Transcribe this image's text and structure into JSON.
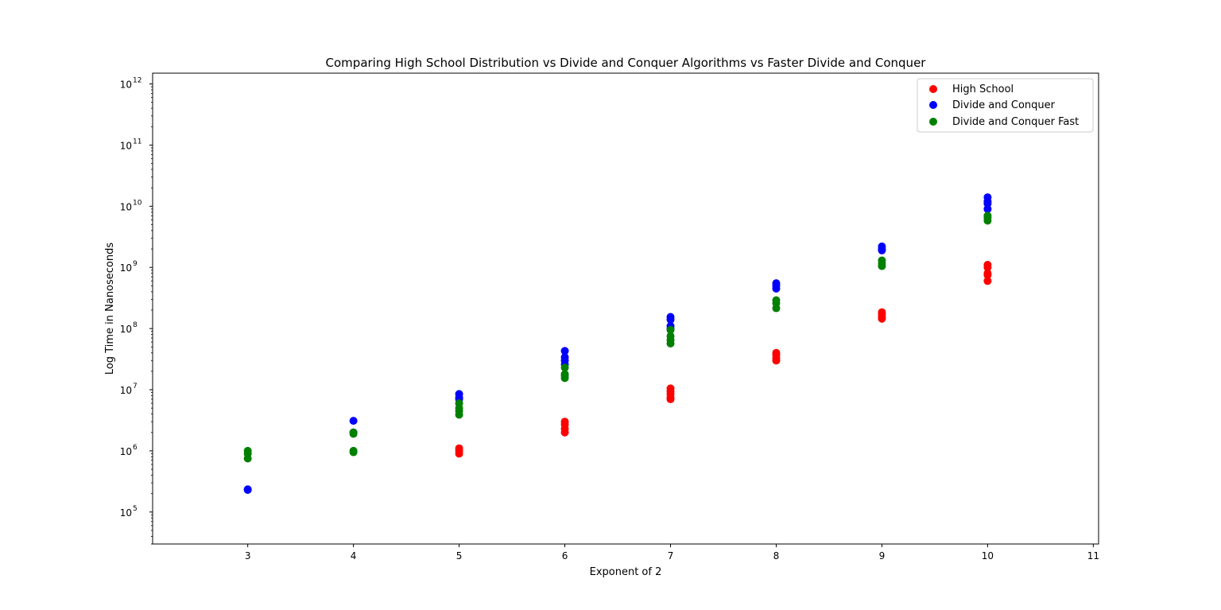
{
  "chart_data": {
    "type": "scatter",
    "title": "Comparing High School Distribution vs Divide and Conquer Algorithms vs Faster Divide and Conquer",
    "xlabel": "Exponent of 2",
    "ylabel": "Log Time in Nanoseconds",
    "xlim": [
      2.1,
      11.05
    ],
    "ylim": [
      30000,
      1500000000000
    ],
    "yscale": "log",
    "grid": false,
    "legend_position": "top-right",
    "x_ticks": [
      3,
      4,
      5,
      6,
      7,
      8,
      9,
      10,
      11
    ],
    "y_ticks": [
      {
        "value": 100000,
        "base": "10",
        "exp": "5"
      },
      {
        "value": 1000000,
        "base": "10",
        "exp": "6"
      },
      {
        "value": 10000000,
        "base": "10",
        "exp": "7"
      },
      {
        "value": 100000000,
        "base": "10",
        "exp": "8"
      },
      {
        "value": 1000000000,
        "base": "10",
        "exp": "9"
      },
      {
        "value": 10000000000,
        "base": "10",
        "exp": "10"
      },
      {
        "value": 100000000000,
        "base": "10",
        "exp": "11"
      },
      {
        "value": 1000000000000,
        "base": "10",
        "exp": "12"
      }
    ],
    "series": [
      {
        "name": "High School",
        "color": "#ff0000",
        "x": [
          5,
          5,
          5,
          6,
          6,
          6,
          6,
          7,
          7,
          7,
          7,
          7,
          8,
          8,
          8,
          8,
          9,
          9,
          9,
          9,
          10,
          10,
          10,
          10,
          10
        ],
        "y": [
          1100000,
          1000000,
          900000,
          3000000,
          2700000,
          2300000,
          2000000,
          10500000,
          9500000,
          8500000,
          7500000,
          7000000,
          40000000,
          37000000,
          33000000,
          30000000,
          185000000,
          170000000,
          155000000,
          145000000,
          1100000000,
          1000000000,
          800000000,
          750000000,
          600000000
        ]
      },
      {
        "name": "Divide and Conquer",
        "color": "#0000ff",
        "x": [
          3,
          3,
          4,
          4,
          5,
          5,
          5,
          6,
          6,
          6,
          6,
          7,
          7,
          7,
          7,
          8,
          8,
          8,
          9,
          9,
          9,
          10,
          10,
          10,
          10
        ],
        "y": [
          230000,
          235000,
          3100000,
          2000000,
          8500000,
          7500000,
          7000000,
          43000000,
          34000000,
          30000000,
          26000000,
          155000000,
          140000000,
          110000000,
          100000000,
          550000000,
          500000000,
          450000000,
          2200000000,
          2000000000,
          1900000000,
          14000000000,
          12000000000,
          11000000000,
          9000000000
        ]
      },
      {
        "name": "Divide and Conquer Fast",
        "color": "#008000",
        "x": [
          3,
          3,
          3,
          4,
          4,
          4,
          4,
          5,
          5,
          5,
          5,
          6,
          6,
          6,
          6,
          7,
          7,
          7,
          7,
          8,
          8,
          8,
          9,
          9,
          9,
          10,
          10,
          10
        ],
        "y": [
          1000000,
          900000,
          750000,
          2000000,
          1900000,
          1000000,
          950000,
          6000000,
          5000000,
          4500000,
          3900000,
          23000000,
          18000000,
          17000000,
          15500000,
          95000000,
          75000000,
          65000000,
          57000000,
          290000000,
          260000000,
          215000000,
          1300000000,
          1150000000,
          1050000000,
          7000000000,
          6500000000,
          5800000000
        ]
      }
    ]
  }
}
